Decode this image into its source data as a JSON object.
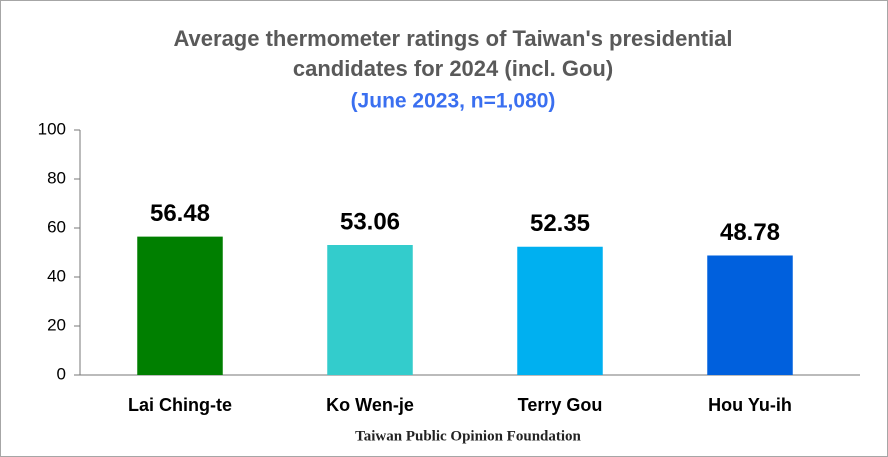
{
  "chart_data": {
    "type": "bar",
    "title": [
      "Average thermometer ratings of Taiwan's presidential",
      "candidates for 2024 (incl. Gou)"
    ],
    "subtitle": "(June 2023, n=1,080)",
    "categories": [
      "Lai Ching-te",
      "Ko Wen-je",
      "Terry Gou",
      "Hou Yu-ih"
    ],
    "values": [
      56.48,
      53.06,
      52.35,
      48.78
    ],
    "colors": [
      "#007f00",
      "#33cccc",
      "#00b0f0",
      "#0060dd"
    ],
    "ylim": [
      0,
      100
    ],
    "yticks": [
      0,
      20,
      40,
      60,
      80,
      100
    ],
    "grid": false,
    "source": "Taiwan Public Opinion Foundation"
  }
}
